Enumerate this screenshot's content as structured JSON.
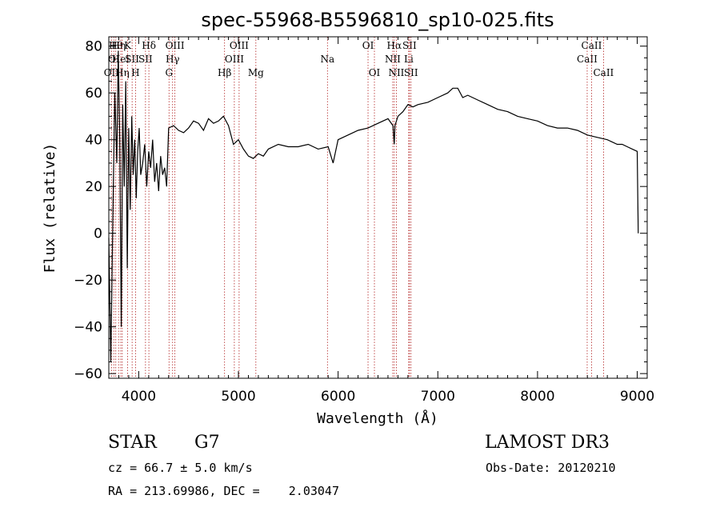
{
  "chart_data": {
    "type": "line",
    "title": "spec-55968-B5596810_sp10-025.fits",
    "xlabel": "Wavelength (Å)",
    "ylabel": "Flux (relative)",
    "xlim": [
      3700,
      9100
    ],
    "ylim": [
      -62,
      84
    ],
    "xticks": [
      4000,
      5000,
      6000,
      7000,
      8000,
      9000
    ],
    "yticks": [
      -60,
      -40,
      -20,
      0,
      20,
      40,
      60,
      80
    ],
    "series": [
      {
        "name": "flux",
        "x": [
          3700,
          3720,
          3740,
          3760,
          3780,
          3795,
          3810,
          3825,
          3840,
          3855,
          3870,
          3885,
          3900,
          3915,
          3930,
          3945,
          3960,
          3975,
          3990,
          4005,
          4020,
          4040,
          4060,
          4080,
          4100,
          4120,
          4140,
          4160,
          4180,
          4200,
          4220,
          4240,
          4260,
          4280,
          4300,
          4350,
          4400,
          4450,
          4500,
          4550,
          4600,
          4650,
          4700,
          4750,
          4800,
          4850,
          4900,
          4950,
          5000,
          5050,
          5100,
          5150,
          5200,
          5250,
          5300,
          5400,
          5500,
          5600,
          5700,
          5800,
          5900,
          5950,
          6000,
          6100,
          6200,
          6300,
          6400,
          6500,
          6550,
          6563,
          6570,
          6600,
          6650,
          6700,
          6750,
          6800,
          6900,
          7000,
          7100,
          7150,
          7200,
          7250,
          7300,
          7400,
          7500,
          7600,
          7700,
          7800,
          7900,
          8000,
          8100,
          8200,
          8300,
          8400,
          8500,
          8600,
          8700,
          8800,
          8850,
          8900,
          8950,
          9000,
          9010
        ],
        "y": [
          -2,
          -55,
          5,
          60,
          30,
          78,
          40,
          -40,
          55,
          20,
          65,
          -15,
          45,
          10,
          50,
          25,
          40,
          15,
          35,
          45,
          25,
          30,
          38,
          20,
          35,
          28,
          40,
          22,
          30,
          18,
          33,
          25,
          28,
          20,
          45,
          46,
          44,
          43,
          45,
          48,
          47,
          44,
          49,
          47,
          48,
          50,
          46,
          38,
          40,
          36,
          33,
          32,
          34,
          33,
          36,
          38,
          37,
          37,
          38,
          36,
          37,
          30,
          40,
          42,
          44,
          45,
          47,
          49,
          46,
          38,
          46,
          50,
          52,
          55,
          54,
          55,
          56,
          58,
          60,
          62,
          62,
          58,
          59,
          57,
          55,
          53,
          52,
          50,
          49,
          48,
          46,
          45,
          45,
          44,
          42,
          41,
          40,
          38,
          38,
          37,
          36,
          35,
          0
        ]
      }
    ],
    "lines": [
      {
        "wave": 3727,
        "label": "OII",
        "row": 3
      },
      {
        "wave": 3750,
        "label": "OI",
        "row": 2
      },
      {
        "wave": 3770,
        "label": "Hθ",
        "row": 1
      },
      {
        "wave": 3798,
        "label": "Hη",
        "row": 1
      },
      {
        "wave": 3820,
        "label": "HeI",
        "row": 2
      },
      {
        "wave": 3835,
        "label": "Hη",
        "row": 3
      },
      {
        "wave": 3889,
        "label": "K",
        "row": 1
      },
      {
        "wave": 3934,
        "label": "SII",
        "row": 2
      },
      {
        "wave": 3968,
        "label": "H",
        "row": 3
      },
      {
        "wave": 4068,
        "label": "SII",
        "row": 2
      },
      {
        "wave": 4102,
        "label": "Hδ",
        "row": 1
      },
      {
        "wave": 4304,
        "label": "G",
        "row": 3
      },
      {
        "wave": 4340,
        "label": "Hγ",
        "row": 2
      },
      {
        "wave": 4363,
        "label": "OIII",
        "row": 1
      },
      {
        "wave": 4861,
        "label": "Hβ",
        "row": 3
      },
      {
        "wave": 4959,
        "label": "OIII",
        "row": 2
      },
      {
        "wave": 5007,
        "label": "OIII",
        "row": 1
      },
      {
        "wave": 5175,
        "label": "Mg",
        "row": 3
      },
      {
        "wave": 5893,
        "label": "Na",
        "row": 2
      },
      {
        "wave": 6300,
        "label": "OI",
        "row": 1
      },
      {
        "wave": 6364,
        "label": "OI",
        "row": 3
      },
      {
        "wave": 6548,
        "label": "NII",
        "row": 2
      },
      {
        "wave": 6563,
        "label": "Hα",
        "row": 1
      },
      {
        "wave": 6584,
        "label": "NII",
        "row": 3
      },
      {
        "wave": 6708,
        "label": "Li",
        "row": 2
      },
      {
        "wave": 6716,
        "label": "SII",
        "row": 1
      },
      {
        "wave": 6731,
        "label": "SII",
        "row": 3
      },
      {
        "wave": 8498,
        "label": "CaII",
        "row": 2
      },
      {
        "wave": 8542,
        "label": "CaII",
        "row": 1
      },
      {
        "wave": 8662,
        "label": "CaII",
        "row": 3
      }
    ]
  },
  "info": {
    "class": "STAR",
    "subclass": "G7",
    "survey": "LAMOST DR3",
    "cz": "cz = 66.7 ± 5.0 km/s",
    "obs_date": "Obs-Date: 20120210",
    "coords": "RA = 213.69986, DEC =    2.03047"
  }
}
